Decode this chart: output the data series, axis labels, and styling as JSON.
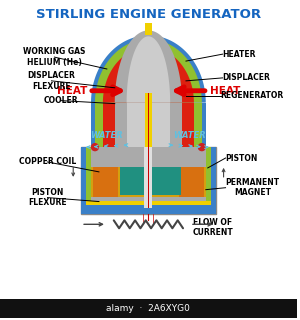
{
  "title": "STIRLING ENGINE GENERATOR",
  "title_color": "#1565c0",
  "title_fontsize": 9.5,
  "bg_color": "#ffffff",
  "labels": {
    "working_gas": "WORKING GAS\nHELIUM (He)",
    "heat_left": "HEAT",
    "heat_right": "HEAT",
    "heater": "HEATER",
    "displacer_flexure": "DISPLACER\nFLEXURE",
    "displacer": "DISPLACER",
    "cooler": "COOLER",
    "regenerator": "REGENERATOR",
    "water_left": "WATER",
    "water_right": "WATER",
    "copper_coil": "COPPER COIL",
    "piston": "PISTON",
    "piston_flexure": "PISTON\nFLEXURE",
    "permanent_magnet": "PERMANENT\nMAGNET",
    "flow_of_current": "FLOW OF\nCURRENT"
  },
  "colors": {
    "outer_blue": "#3a80c8",
    "green_border": "#90c030",
    "red_hot": "#dd2010",
    "gray_displacer": "#aaaaaa",
    "gray_displacer_light": "#cccccc",
    "yellow_rod": "#f0d000",
    "teal_coil": "#209080",
    "orange_magnet": "#d87010",
    "gold_piston": "#d4a010",
    "silver_piston_rod": "#c8c8c8",
    "water_blue": "#60c0e0",
    "arrow_red": "#dd0000",
    "dark_gray": "#444444",
    "frame_bg": "#f0f0ee",
    "frame_border": "#888888"
  }
}
